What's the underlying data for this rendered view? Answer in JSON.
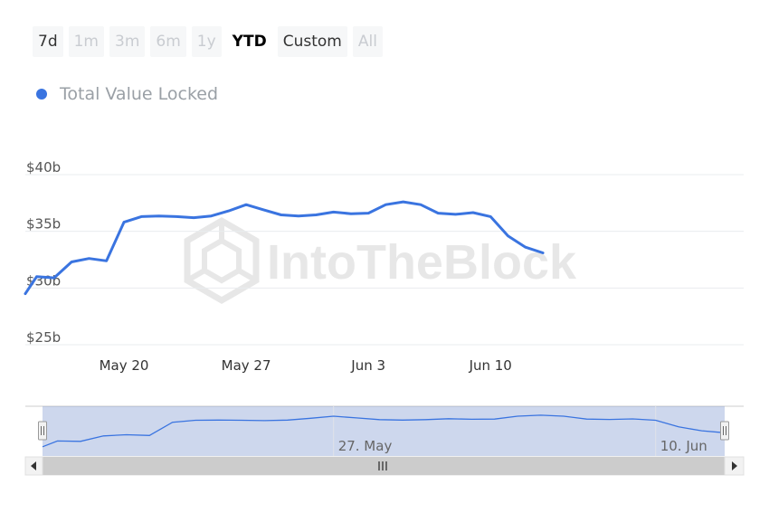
{
  "range_selector": {
    "buttons": [
      {
        "label": "7d",
        "state": "enabled"
      },
      {
        "label": "1m",
        "state": "disabled"
      },
      {
        "label": "3m",
        "state": "disabled"
      },
      {
        "label": "6m",
        "state": "disabled"
      },
      {
        "label": "1y",
        "state": "disabled"
      },
      {
        "label": "YTD",
        "state": "selected"
      },
      {
        "label": "Custom",
        "state": "enabled"
      },
      {
        "label": "All",
        "state": "disabled"
      }
    ]
  },
  "watermark": "IntoTheBlock",
  "colors": {
    "series": "#3a74e0",
    "grid": "#e9ecef",
    "navigator_mask": "rgba(100,130,200,0.32)"
  },
  "chart_data": {
    "type": "line",
    "title": "",
    "xlabel": "",
    "ylabel": "",
    "legend_position": "top-left",
    "grid": true,
    "ylim": [
      25,
      40
    ],
    "y_ticks": [
      "$25b",
      "$30b",
      "$35b",
      "$40b"
    ],
    "y_tick_values": [
      25,
      30,
      35,
      40
    ],
    "x_range": [
      14.35,
      55.5
    ],
    "x_ticks": [
      {
        "label": "May 20",
        "value": 20
      },
      {
        "label": "May 27",
        "value": 27
      },
      {
        "label": "Jun 3",
        "value": 34
      },
      {
        "label": "Jun 10",
        "value": 41
      }
    ],
    "series": [
      {
        "name": "Total Value Locked",
        "x_dates": [
          "May 14",
          "May 15",
          "May 16",
          "May 17",
          "May 18",
          "May 19",
          "May 20",
          "May 21",
          "May 22",
          "May 23",
          "May 24",
          "May 25",
          "May 26",
          "May 27",
          "May 28",
          "May 29",
          "May 30",
          "May 31",
          "Jun 1",
          "Jun 2",
          "Jun 3",
          "Jun 4",
          "Jun 5",
          "Jun 6",
          "Jun 7",
          "Jun 8",
          "Jun 9",
          "Jun 10",
          "Jun 11",
          "Jun 12",
          "Jun 13"
        ],
        "x": [
          14.35,
          15,
          16,
          17,
          18,
          19,
          20,
          21,
          22,
          23,
          24,
          25,
          26,
          27,
          28,
          29,
          30,
          31,
          32,
          33,
          34,
          35,
          36,
          37,
          38,
          39,
          40,
          41,
          42,
          43,
          44
        ],
        "values": [
          29.5,
          31.0,
          30.9,
          32.3,
          32.6,
          32.4,
          35.8,
          36.3,
          36.35,
          36.3,
          36.2,
          36.35,
          36.8,
          37.35,
          36.9,
          36.45,
          36.35,
          36.45,
          36.7,
          36.55,
          36.6,
          37.35,
          37.6,
          37.35,
          36.6,
          36.5,
          36.65,
          36.3,
          34.6,
          33.6,
          33.1
        ]
      }
    ],
    "navigator": {
      "x_ticks": [
        {
          "label": "27. May",
          "value": 27
        },
        {
          "label": "10. Jun",
          "value": 41
        }
      ],
      "selected_range": [
        14.35,
        44
      ]
    }
  }
}
